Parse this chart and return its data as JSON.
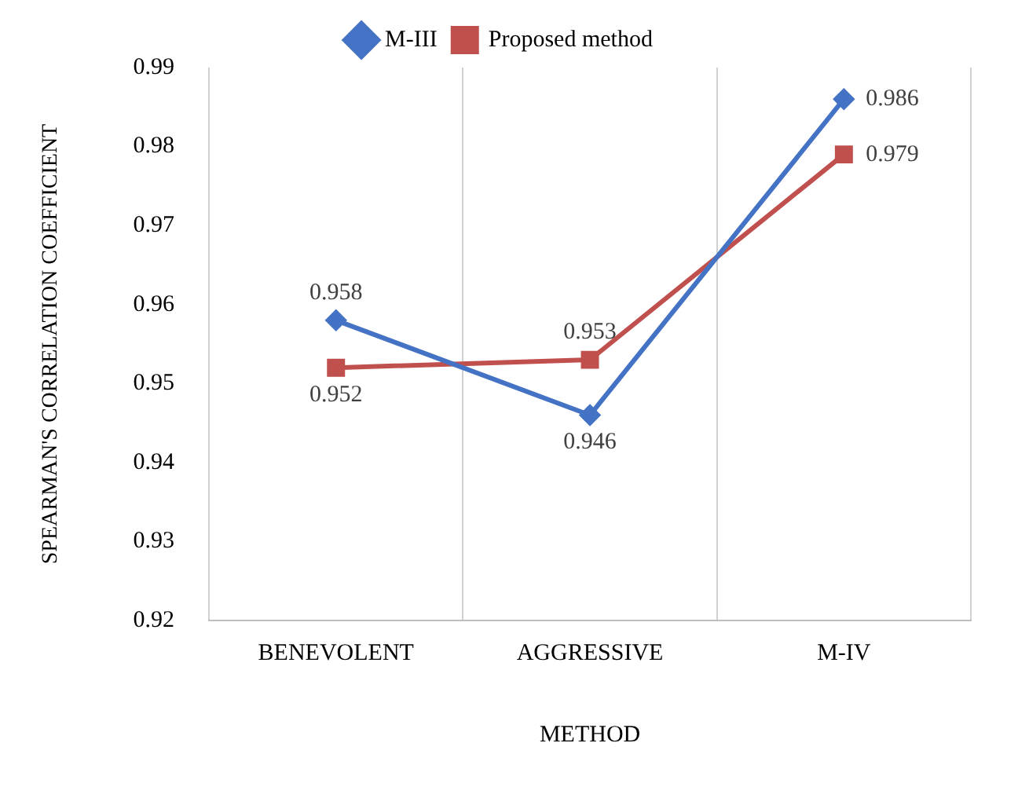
{
  "chart_data": {
    "type": "line",
    "xlabel": "METHOD",
    "ylabel": "SPEARMAN'S CORRELATION COEFFICIENT",
    "categories": [
      "BENEVOLENT",
      "AGGRESSIVE",
      "M-IV"
    ],
    "series": [
      {
        "name": "M-III",
        "color": "#4472c4",
        "values": [
          0.958,
          0.946,
          0.986
        ],
        "marker": "diamond"
      },
      {
        "name": "Proposed method",
        "color": "#c0504d",
        "values": [
          0.952,
          0.953,
          0.979
        ],
        "marker": "square"
      }
    ],
    "ylim": [
      0.92,
      0.99
    ],
    "yticks": [
      0.92,
      0.93,
      0.94,
      0.95,
      0.96,
      0.97,
      0.98,
      0.99
    ],
    "grid": "x",
    "legend": "top",
    "data_labels": true,
    "line_style": "solid"
  }
}
